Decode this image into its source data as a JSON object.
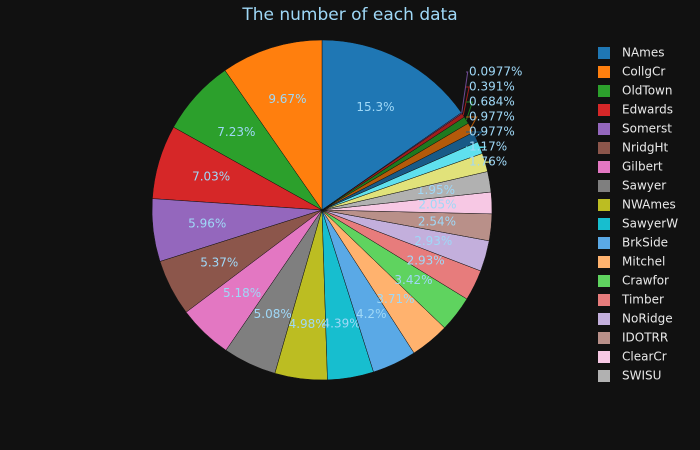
{
  "chart_data": {
    "type": "pie",
    "title": "The number of each data",
    "categories": [
      "NAmes",
      "CollgCr",
      "OldTown",
      "Edwards",
      "Somerst",
      "NridgHt",
      "Gilbert",
      "Sawyer",
      "NWAmes",
      "SawyerW",
      "BrkSide",
      "Mitchel",
      "Crawfor",
      "Timber",
      "NoRidge",
      "IDOTRR",
      "ClearCr",
      "SWISU",
      null,
      null,
      null,
      null,
      null,
      null,
      null
    ],
    "values": [
      15.3,
      9.67,
      7.23,
      7.03,
      5.96,
      5.37,
      5.18,
      5.08,
      4.98,
      4.39,
      4.2,
      3.71,
      3.42,
      2.93,
      2.93,
      2.54,
      2.05,
      1.95,
      1.76,
      1.17,
      0.977,
      0.977,
      0.684,
      0.391,
      0.0977
    ],
    "value_labels": [
      "15.3%",
      "9.67%",
      "7.23%",
      "7.03%",
      "5.96%",
      "5.37%",
      "5.18%",
      "5.08%",
      "4.98%",
      "4.39%",
      "4.2%",
      "3.71%",
      "3.42%",
      "2.93%",
      "2.93%",
      "2.54%",
      "2.05%",
      "1.95%",
      "1.76%",
      "1.17%",
      "0.977%",
      "0.977%",
      "0.684%",
      "0.391%",
      "0.0977%"
    ],
    "colors": [
      "#1f77b4",
      "#ff7f0e",
      "#2ca02c",
      "#d62728",
      "#9467bd",
      "#8c564b",
      "#e377c2",
      "#7f7f7f",
      "#bcbd22",
      "#17becf",
      "#5aa9e6",
      "#ffb26e",
      "#5fd35f",
      "#e77c7c",
      "#c3afdc",
      "#b99089",
      "#f7c8e4",
      "#b1b1b1",
      "#e1e27a",
      "#5fe0ee",
      "#185a87",
      "#b35a0a",
      "#1f7a1f",
      "#a01d1d",
      "#6e4a93"
    ],
    "legend": "right"
  }
}
